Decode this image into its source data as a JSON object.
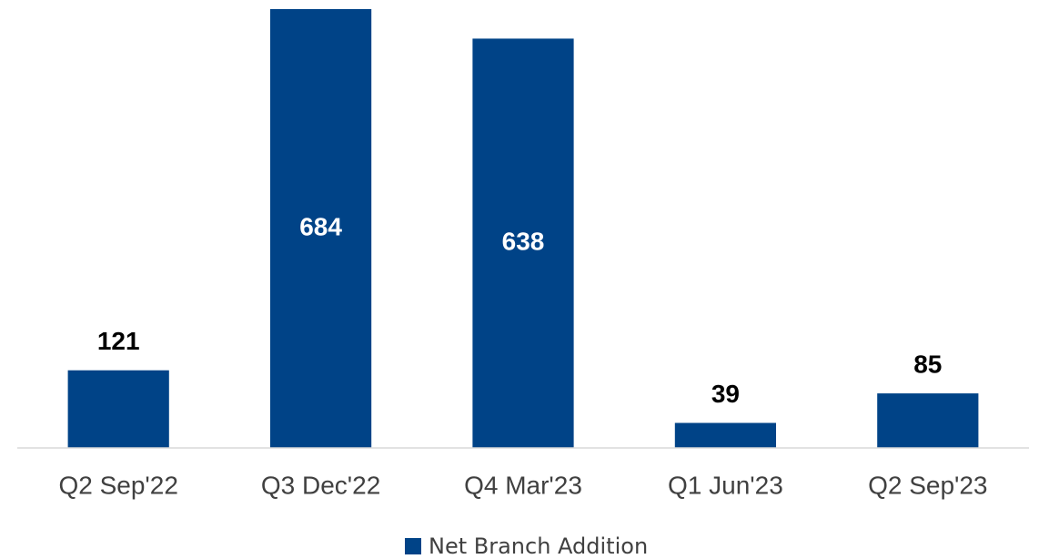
{
  "chart_data": {
    "type": "bar",
    "categories": [
      "Q2 Sep'22",
      "Q3 Dec'22",
      "Q4 Mar'23",
      "Q1 Jun'23",
      "Q2 Sep'23"
    ],
    "series": [
      {
        "name": "Net Branch Addition",
        "color": "#004387",
        "values": [
          121,
          684,
          638,
          39,
          85
        ]
      }
    ],
    "legend": "bottom"
  }
}
